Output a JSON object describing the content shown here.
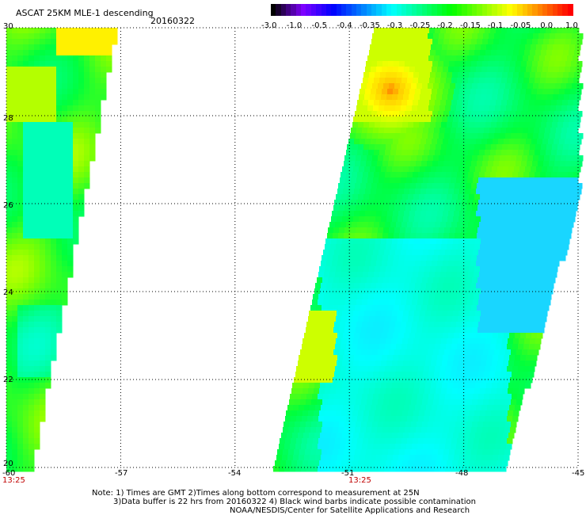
{
  "header": {
    "title": "ASCAT 25KM MLE-1 descending",
    "date": "20160322"
  },
  "colorbar": {
    "labels": [
      "-3.0",
      "-1.0",
      "-0.5",
      "-0.4",
      "-0.35",
      "-0.3",
      "-0.25",
      "-0.2",
      "-0.15",
      "-0.1",
      "-0.05",
      "0.0",
      "1.0"
    ],
    "colors": [
      "#000000",
      "#7f00ff",
      "#0000ff",
      "#0080ff",
      "#00ffff",
      "#00ff80",
      "#00ff00",
      "#80ff00",
      "#ffff00",
      "#ff8000",
      "#ff0000"
    ]
  },
  "map": {
    "lon_range": [
      -60,
      -45
    ],
    "lat_range": [
      20,
      30
    ],
    "lon_ticks": [
      "-60",
      "-57",
      "-54",
      "-51",
      "-48",
      "-45"
    ],
    "lat_ticks": [
      "30",
      "28",
      "26",
      "24",
      "22",
      "20"
    ],
    "swath_times": [
      "13:25",
      "13:25"
    ]
  },
  "notes": {
    "line1": "Note: 1) Times are GMT 2)Times along bottom correspond to measurement at 25N",
    "line2": "3)Data buffer is 22 hrs from 20160322 4) Black wind barbs indicate possible contamination",
    "line3": "NOAA/NESDIS/Center for Satellite Applications and Research"
  }
}
